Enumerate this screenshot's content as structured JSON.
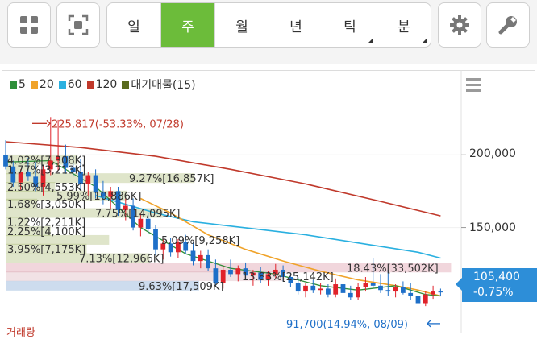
{
  "toolbar": {
    "periods": [
      {
        "label": "일",
        "active": false,
        "has_submenu": false
      },
      {
        "label": "주",
        "active": true,
        "has_submenu": false
      },
      {
        "label": "월",
        "active": false,
        "has_submenu": false
      },
      {
        "label": "년",
        "active": false,
        "has_submenu": false
      },
      {
        "label": "틱",
        "active": false,
        "has_submenu": true
      },
      {
        "label": "분",
        "active": false,
        "has_submenu": true
      }
    ],
    "icons": [
      "grid-icon",
      "fullscreen-icon",
      "gear-icon",
      "wrench-icon"
    ],
    "accent_color": "#6cbc3a"
  },
  "legend": [
    {
      "label": "5",
      "color": "#2f8f3a"
    },
    {
      "label": "20",
      "color": "#f0a32a"
    },
    {
      "label": "60",
      "color": "#2ab0e0"
    },
    {
      "label": "120",
      "color": "#c0392b"
    },
    {
      "label": "대기매물(15)",
      "color": "#5a6b1e"
    }
  ],
  "annotations": {
    "high": "225,817(-53.33%, 07/28)",
    "low": "91,700(14.94%, 08/09)"
  },
  "current_price": {
    "value": "105,400",
    "change": "-0.75%",
    "color": "#2d8ed8"
  },
  "bottom_label": "거래량",
  "chart_data": {
    "type": "candlestick",
    "y_axis": {
      "ticks": [
        200000,
        150000
      ],
      "tick_labels": [
        "200,000",
        "150,000"
      ],
      "range": [
        85000,
        240000
      ]
    },
    "x_count": 60,
    "moving_averages": [
      {
        "name": "120",
        "color": "#c0392b",
        "points": [
          [
            0,
            209000
          ],
          [
            10,
            205000
          ],
          [
            20,
            199000
          ],
          [
            30,
            190000
          ],
          [
            40,
            180000
          ],
          [
            50,
            168000
          ],
          [
            58,
            158000
          ]
        ]
      },
      {
        "name": "60",
        "color": "#2ab0e0",
        "points": [
          [
            12,
            172000
          ],
          [
            20,
            160000
          ],
          [
            25,
            154000
          ],
          [
            30,
            151000
          ],
          [
            35,
            148000
          ],
          [
            40,
            145000
          ],
          [
            45,
            141000
          ],
          [
            50,
            137000
          ],
          [
            55,
            133000
          ],
          [
            58,
            129000
          ]
        ]
      },
      {
        "name": "20",
        "color": "#f0a32a",
        "points": [
          [
            18,
            170000
          ],
          [
            22,
            160000
          ],
          [
            27,
            145000
          ],
          [
            32,
            135000
          ],
          [
            37,
            127000
          ],
          [
            42,
            120000
          ],
          [
            47,
            114000
          ],
          [
            52,
            110000
          ],
          [
            55,
            107000
          ],
          [
            58,
            103000
          ]
        ]
      },
      {
        "name": "5",
        "color": "#2f8f3a",
        "points": [
          [
            0,
            195000
          ],
          [
            6,
            196000
          ],
          [
            12,
            178000
          ],
          [
            18,
            150000
          ],
          [
            24,
            132000
          ],
          [
            30,
            122000
          ],
          [
            36,
            118000
          ],
          [
            42,
            110000
          ],
          [
            47,
            107000
          ],
          [
            52,
            110000
          ],
          [
            56,
            104000
          ],
          [
            58,
            103000
          ]
        ]
      }
    ],
    "candles": [
      [
        0,
        200000,
        210000,
        190000,
        192000
      ],
      [
        1,
        192000,
        196000,
        178000,
        181000
      ],
      [
        2,
        181000,
        190000,
        176000,
        188000
      ],
      [
        3,
        188000,
        198000,
        182000,
        185000
      ],
      [
        4,
        185000,
        195000,
        175000,
        178000
      ],
      [
        5,
        178000,
        193000,
        172000,
        190000
      ],
      [
        6,
        190000,
        226000,
        186000,
        196000
      ],
      [
        7,
        196000,
        224000,
        189000,
        199000
      ],
      [
        8,
        199000,
        207000,
        187000,
        191000
      ],
      [
        9,
        191000,
        199000,
        185000,
        188000
      ],
      [
        10,
        188000,
        197000,
        176000,
        180000
      ],
      [
        11,
        180000,
        188000,
        172000,
        186000
      ],
      [
        12,
        186000,
        190000,
        170000,
        174000
      ],
      [
        13,
        174000,
        182000,
        166000,
        171000
      ],
      [
        14,
        171000,
        178000,
        163000,
        175000
      ],
      [
        15,
        175000,
        178000,
        158000,
        162000
      ],
      [
        16,
        162000,
        170000,
        155000,
        165000
      ],
      [
        17,
        165000,
        170000,
        148000,
        150000
      ],
      [
        18,
        150000,
        160000,
        144000,
        156000
      ],
      [
        19,
        156000,
        160000,
        146000,
        149000
      ],
      [
        20,
        149000,
        152000,
        131000,
        135000
      ],
      [
        21,
        135000,
        142000,
        128000,
        139000
      ],
      [
        22,
        139000,
        143000,
        130000,
        133000
      ],
      [
        23,
        133000,
        142000,
        129000,
        140000
      ],
      [
        24,
        140000,
        145000,
        132000,
        134000
      ],
      [
        25,
        134000,
        140000,
        124000,
        127000
      ],
      [
        26,
        127000,
        134000,
        122000,
        131000
      ],
      [
        27,
        131000,
        135000,
        120000,
        122000
      ],
      [
        28,
        122000,
        128000,
        110000,
        112000
      ],
      [
        29,
        112000,
        124000,
        108000,
        121000
      ],
      [
        30,
        121000,
        128000,
        116000,
        118000
      ],
      [
        31,
        118000,
        124000,
        113000,
        122000
      ],
      [
        32,
        122000,
        126000,
        115000,
        117000
      ],
      [
        33,
        117000,
        121000,
        110000,
        119000
      ],
      [
        34,
        119000,
        123000,
        112000,
        114000
      ],
      [
        35,
        114000,
        120000,
        110000,
        118000
      ],
      [
        36,
        118000,
        125000,
        115000,
        121000
      ],
      [
        37,
        121000,
        124000,
        113000,
        116000
      ],
      [
        38,
        116000,
        119000,
        109000,
        112000
      ],
      [
        39,
        112000,
        116000,
        104000,
        106000
      ],
      [
        40,
        106000,
        112000,
        102000,
        110000
      ],
      [
        41,
        110000,
        114000,
        105000,
        107000
      ],
      [
        42,
        107000,
        112000,
        104000,
        108000
      ],
      [
        43,
        108000,
        111000,
        102000,
        104000
      ],
      [
        44,
        104000,
        115000,
        102000,
        111000
      ],
      [
        45,
        111000,
        114000,
        103000,
        105000
      ],
      [
        46,
        105000,
        110000,
        100000,
        102000
      ],
      [
        47,
        102000,
        112000,
        100000,
        109000
      ],
      [
        48,
        109000,
        116000,
        106000,
        112000
      ],
      [
        49,
        112000,
        129000,
        108000,
        110000
      ],
      [
        50,
        110000,
        118000,
        105000,
        107000
      ],
      [
        51,
        107000,
        121000,
        103000,
        106000
      ],
      [
        52,
        106000,
        111000,
        102000,
        109000
      ],
      [
        53,
        109000,
        113000,
        104000,
        105000
      ],
      [
        54,
        105000,
        112000,
        100000,
        103000
      ],
      [
        55,
        103000,
        107000,
        92000,
        98000
      ],
      [
        56,
        98000,
        106000,
        96000,
        104000
      ],
      [
        57,
        104000,
        110000,
        101000,
        106000
      ],
      [
        58,
        106000,
        108000,
        103000,
        105400
      ]
    ],
    "volume_profile": [
      {
        "label": "4.02%[7,308K]",
        "price": 196500,
        "width": 0.16
      },
      {
        "label": "1.77%[3,213K]",
        "price": 190000,
        "width": 0.07
      },
      {
        "label": "9.27%[16,857K]",
        "price": 184000,
        "width": 0.42
      },
      {
        "label": "2.50%[4,553K]",
        "price": 178000,
        "width": 0.11
      },
      {
        "label": "5.99%[10,886K]",
        "price": 172000,
        "width": 0.27
      },
      {
        "label": "1.68%[3,050K]",
        "price": 166500,
        "width": 0.07
      },
      {
        "label": "7.75%[14,095K]",
        "price": 160000,
        "width": 0.35
      },
      {
        "label": "1.22%[2,211K]",
        "price": 154000,
        "width": 0.05
      },
      {
        "label": "2.25%[4,100K]",
        "price": 147500,
        "width": 0.1
      },
      {
        "label": "5.09%[9,258K]",
        "price": 141500,
        "width": 0.23
      },
      {
        "label": "3.95%[7,175K]",
        "price": 135500,
        "width": 0.18
      },
      {
        "label": "7.13%[12,966K]",
        "price": 129000,
        "width": 0.32
      },
      {
        "label": "18.43%[33,502K]",
        "price": 122500,
        "width": 0.99
      },
      {
        "label": "13.83%[25,142K]",
        "price": 116500,
        "width": 0.62
      },
      {
        "label": "9.63%[17,509K]",
        "price": 110000,
        "width": 0.43
      }
    ]
  }
}
